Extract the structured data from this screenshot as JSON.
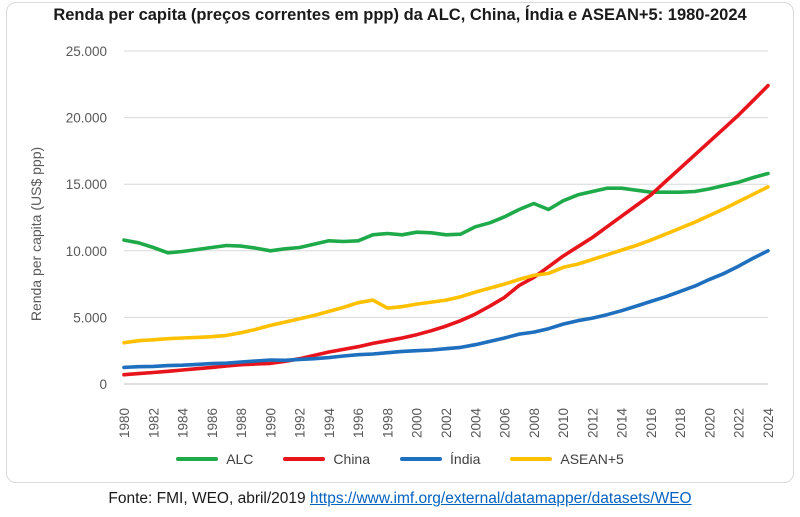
{
  "footer": {
    "source_text": "Fonte: FMI, WEO, abril/2019",
    "link_text": "https://www.imf.org/external/datamapper/datasets/WEO"
  },
  "chart_data": {
    "type": "line",
    "title": "Renda per capita (preços correntes em ppp) da ALC, China, Índia e ASEAN+5: 1980-2024",
    "xlabel": "",
    "ylabel": "Renda per capita (US$ ppp)",
    "ylim": [
      0,
      25000
    ],
    "yticks": [
      0,
      5000,
      10000,
      15000,
      20000,
      25000
    ],
    "ytick_labels": [
      "0",
      "5.000",
      "10.000",
      "15.000",
      "20.000",
      "25.000"
    ],
    "xlim": [
      1980,
      2024
    ],
    "xtick_labels": [
      "1980",
      "1982",
      "1984",
      "1986",
      "1988",
      "1990",
      "1992",
      "1994",
      "1996",
      "1998",
      "2000",
      "2002",
      "2004",
      "2006",
      "2008",
      "2010",
      "2012",
      "2014",
      "2016",
      "2018",
      "2020",
      "2022",
      "2024"
    ],
    "grid": true,
    "legend_position": "bottom",
    "x": [
      1980,
      1981,
      1982,
      1983,
      1984,
      1985,
      1986,
      1987,
      1988,
      1989,
      1990,
      1991,
      1992,
      1993,
      1994,
      1995,
      1996,
      1997,
      1998,
      1999,
      2000,
      2001,
      2002,
      2003,
      2004,
      2005,
      2006,
      2007,
      2008,
      2009,
      2010,
      2011,
      2012,
      2013,
      2014,
      2015,
      2016,
      2017,
      2018,
      2019,
      2020,
      2021,
      2022,
      2023,
      2024
    ],
    "series": [
      {
        "name": "ALC",
        "color": "#1faa4a",
        "values": [
          10800,
          10600,
          10250,
          9850,
          9950,
          10100,
          10250,
          10400,
          10350,
          10200,
          10000,
          10150,
          10250,
          10500,
          10750,
          10700,
          10750,
          11200,
          11300,
          11200,
          11400,
          11350,
          11200,
          11250,
          11800,
          12100,
          12550,
          13100,
          13550,
          13100,
          13750,
          14200,
          14450,
          14700,
          14700,
          14550,
          14400,
          14400,
          14400,
          14450,
          14650,
          14900,
          15150,
          15500,
          15800
        ]
      },
      {
        "name": "China",
        "color": "#e8141b",
        "values": [
          700,
          780,
          860,
          950,
          1050,
          1150,
          1250,
          1350,
          1450,
          1500,
          1550,
          1700,
          1900,
          2150,
          2400,
          2600,
          2800,
          3050,
          3250,
          3450,
          3700,
          4000,
          4350,
          4750,
          5250,
          5850,
          6500,
          7400,
          8000,
          8800,
          9600,
          10300,
          11000,
          11800,
          12600,
          13400,
          14200,
          15200,
          16200,
          17200,
          18200,
          19200,
          20200,
          21300,
          22400
        ]
      },
      {
        "name": "Índia",
        "color": "#1f6fbf",
        "values": [
          1250,
          1300,
          1320,
          1380,
          1410,
          1470,
          1530,
          1560,
          1650,
          1730,
          1800,
          1780,
          1850,
          1900,
          1980,
          2100,
          2200,
          2250,
          2350,
          2450,
          2500,
          2550,
          2650,
          2750,
          2950,
          3200,
          3450,
          3750,
          3900,
          4150,
          4500,
          4750,
          4950,
          5200,
          5500,
          5850,
          6200,
          6550,
          6950,
          7350,
          7850,
          8300,
          8850,
          9450,
          10000
        ]
      },
      {
        "name": "ASEAN+5",
        "color": "#ffc000",
        "values": [
          3100,
          3250,
          3320,
          3400,
          3450,
          3500,
          3550,
          3650,
          3850,
          4100,
          4400,
          4650,
          4900,
          5150,
          5450,
          5750,
          6100,
          6300,
          5700,
          5800,
          6000,
          6150,
          6300,
          6550,
          6900,
          7200,
          7500,
          7850,
          8150,
          8300,
          8750,
          9000,
          9350,
          9700,
          10050,
          10400,
          10800,
          11250,
          11700,
          12150,
          12650,
          13150,
          13700,
          14250,
          14800
        ]
      }
    ]
  }
}
